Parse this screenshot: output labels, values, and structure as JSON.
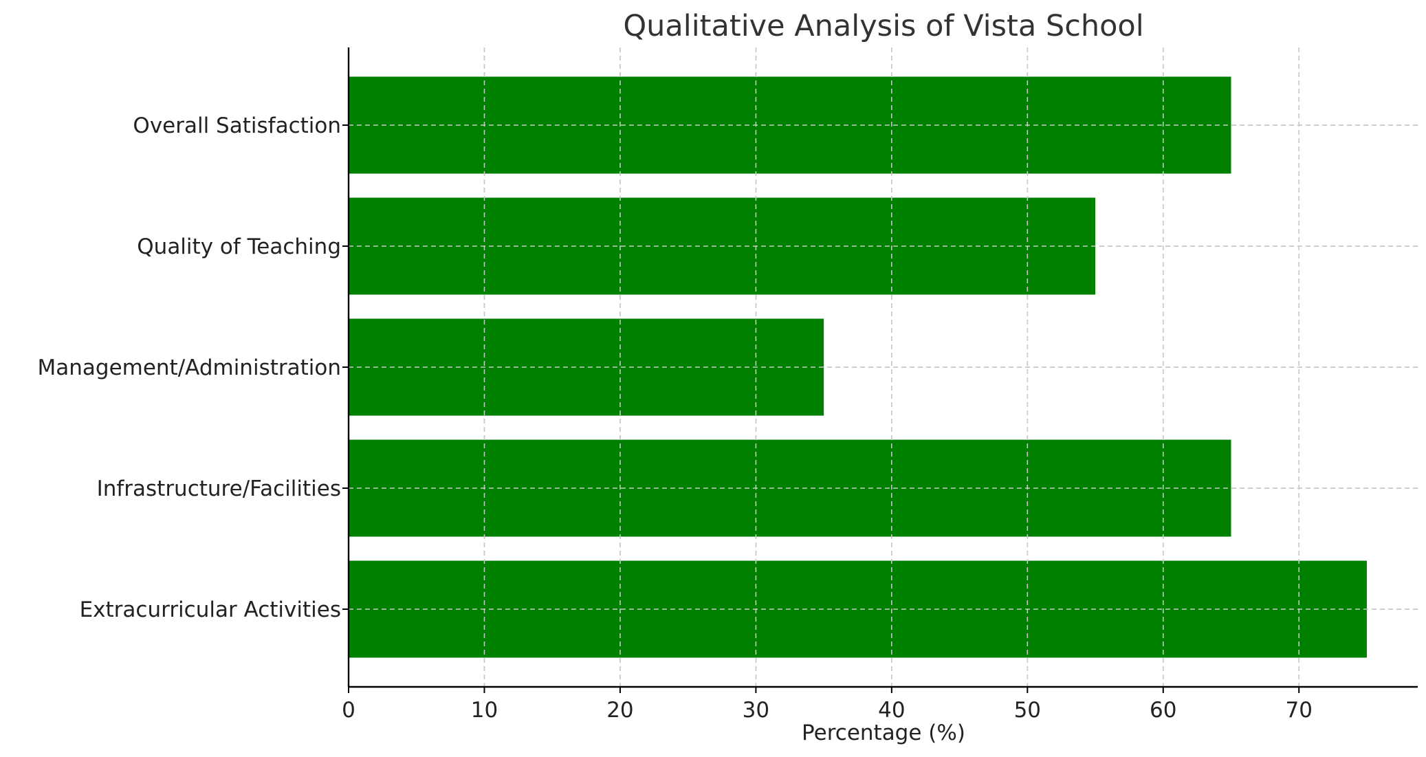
{
  "chart_data": {
    "type": "bar",
    "orientation": "horizontal",
    "title": "Qualitative Analysis of Vista School",
    "xlabel": "Percentage (%)",
    "ylabel": "",
    "categories": [
      "Overall Satisfaction",
      "Quality of Teaching",
      "Management/Administration",
      "Infrastructure/Facilities",
      "Extracurricular Activities"
    ],
    "values": [
      65,
      55,
      35,
      65,
      75
    ],
    "xlim": [
      0,
      78.75
    ],
    "xticks": [
      0,
      10,
      20,
      30,
      40,
      50,
      60,
      70
    ],
    "grid": true,
    "bar_color": "#008000"
  }
}
